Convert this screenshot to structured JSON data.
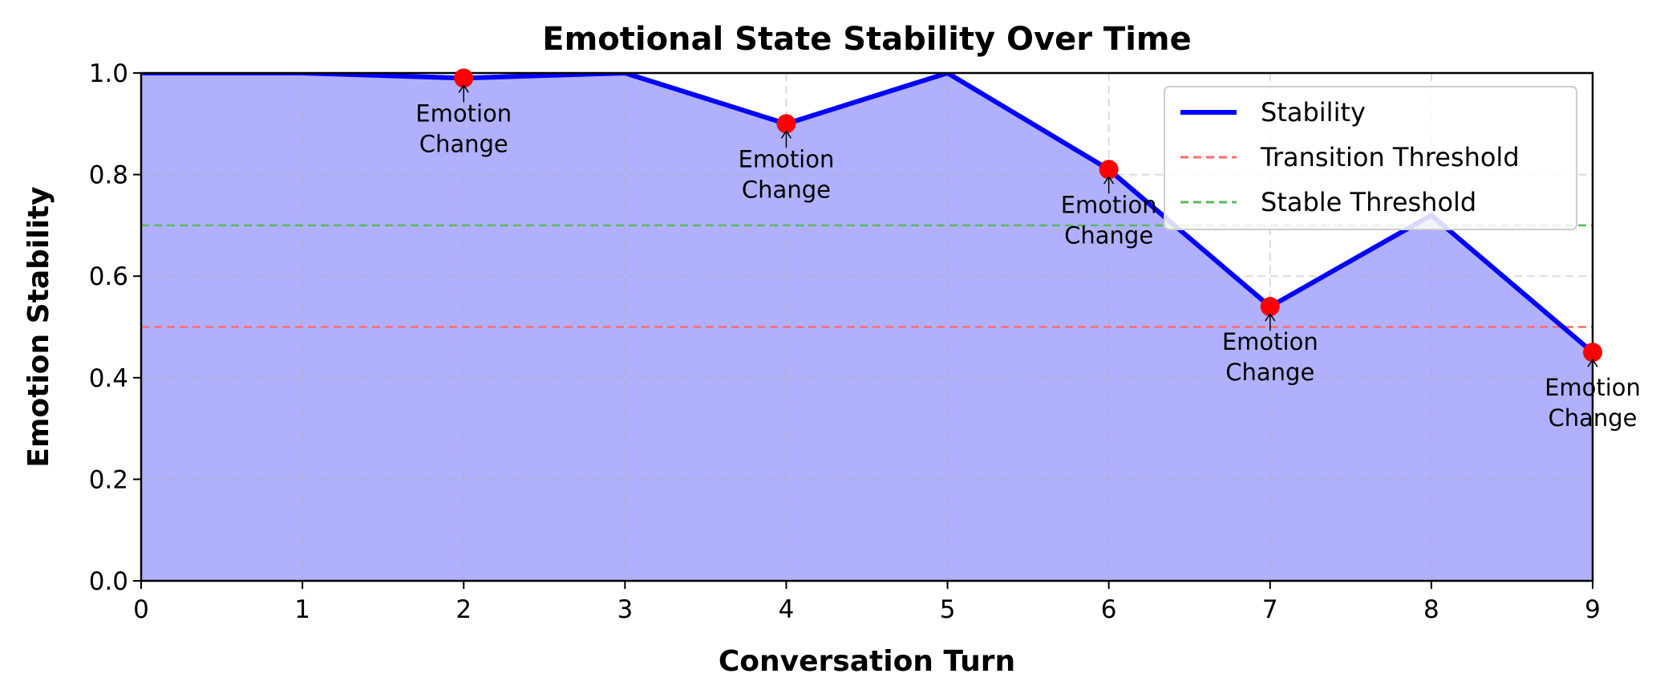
{
  "chart_data": {
    "type": "line",
    "title": "Emotional State Stability Over Time",
    "xlabel": "Conversation Turn",
    "ylabel": "Emotion Stability",
    "xlim": [
      0,
      9
    ],
    "ylim": [
      0,
      1.0
    ],
    "x_ticks": [
      "0",
      "1",
      "2",
      "3",
      "4",
      "5",
      "6",
      "7",
      "8",
      "9"
    ],
    "y_ticks": [
      "0.0",
      "0.2",
      "0.4",
      "0.6",
      "0.8",
      "1.0"
    ],
    "grid": true,
    "legend_position": "top-right",
    "series": [
      {
        "name": "Stability",
        "style": "solid",
        "color": "#0000ff",
        "fill_color": "#b0b0ff",
        "x": [
          0,
          1,
          2,
          3,
          4,
          5,
          6,
          7,
          8,
          9
        ],
        "y": [
          1.0,
          1.0,
          0.99,
          1.0,
          0.9,
          1.0,
          0.81,
          0.54,
          0.72,
          0.45
        ]
      },
      {
        "name": "Transition Threshold",
        "style": "dashed",
        "color": "#ff6b6b",
        "y_constant": 0.5
      },
      {
        "name": "Stable Threshold",
        "style": "dashed",
        "color": "#5cb85c",
        "y_constant": 0.7
      }
    ],
    "marker_color": "#ff0000",
    "emotion_changes": [
      {
        "x": 2,
        "y": 0.99,
        "label_line1": "Emotion",
        "label_line2": "Change"
      },
      {
        "x": 4,
        "y": 0.9,
        "label_line1": "Emotion",
        "label_line2": "Change"
      },
      {
        "x": 6,
        "y": 0.81,
        "label_line1": "Emotion",
        "label_line2": "Change"
      },
      {
        "x": 7,
        "y": 0.54,
        "label_line1": "Emotion",
        "label_line2": "Change"
      },
      {
        "x": 9,
        "y": 0.45,
        "label_line1": "Emotion",
        "label_line2": "Change"
      }
    ]
  }
}
